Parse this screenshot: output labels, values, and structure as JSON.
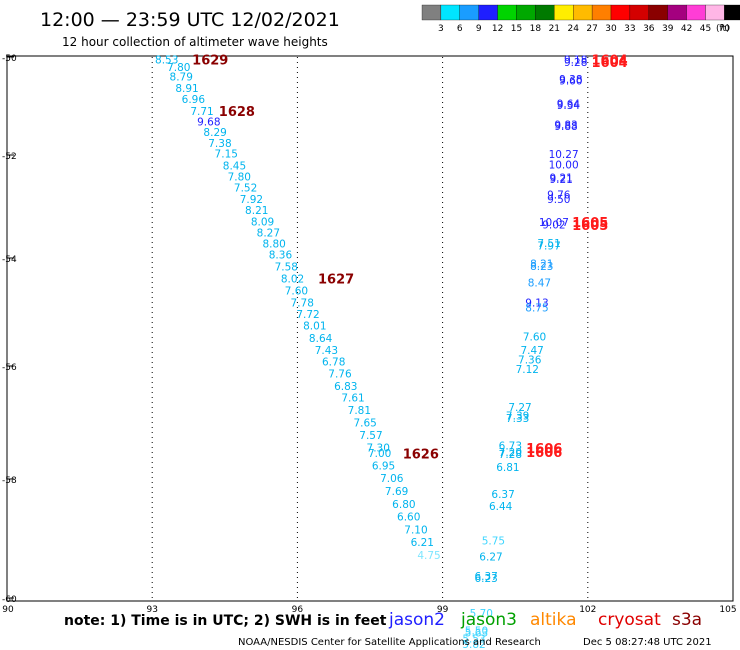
{
  "header": {
    "title": "12:00 — 23:59 UTC 12/02/2021",
    "subtitle": "12 hour collection of altimeter wave heights"
  },
  "color_scale": {
    "labels": [
      "3",
      "6",
      "9",
      "12",
      "15",
      "18",
      "21",
      "24",
      "27",
      "30",
      "33",
      "36",
      "39",
      "42",
      "45",
      "70"
    ],
    "unit": "(ft)",
    "colors": [
      "#808080",
      "#00e5ff",
      "#1a9dff",
      "#1f1fff",
      "#00d400",
      "#00a800",
      "#007a00",
      "#ffee00",
      "#ffbb00",
      "#ff7f00",
      "#ff0000",
      "#d40000",
      "#8a0000",
      "#a4007f",
      "#ff3dd6",
      "#ffb6e6",
      "#000000"
    ]
  },
  "map": {
    "lon_ticks": [
      "90",
      "93",
      "96",
      "99",
      "102",
      "105"
    ],
    "lat_ticks": [
      "-50",
      "-52",
      "-54",
      "-56",
      "-58",
      "-60"
    ],
    "gridlines": [
      "93",
      "96",
      "99",
      "102"
    ],
    "lon_range": [
      90,
      105
    ],
    "lat_range": [
      -50,
      -60
    ]
  },
  "satellites": {
    "jason2": {
      "label": "jason2",
      "color": "#1f1fff"
    },
    "jason3": {
      "label": "jason3",
      "color": "#00a000"
    },
    "altika": {
      "label": "altika",
      "color": "#ff8800"
    },
    "cryosat": {
      "label": "cryosat",
      "color": "#e00000"
    },
    "s3a": {
      "label": "s3a",
      "color": "#8a0000"
    }
  },
  "footer": {
    "note": "note: 1) Time is in UTC; 2) SWH is in feet",
    "legend": [
      "jason2",
      "jason3",
      "altika",
      "cryosat",
      "s3a"
    ],
    "credit": "NOAA/NESDIS Center for Satellite Applications and Research",
    "timestamp": "Dec  5 08:27:48 UTC 2021"
  },
  "tracks": [
    {
      "name": "s3a-track",
      "satellite": "s3a",
      "points": [
        {
          "lon": 93.3,
          "lat": -50.05,
          "v": "8.53",
          "c": "#00b4ee"
        },
        {
          "lon": 93.55,
          "lat": -50.2,
          "v": "7.80",
          "c": "#00b4ee"
        },
        {
          "lon": 93.6,
          "lat": -50.4,
          "v": "8.79",
          "c": "#00b4ee"
        },
        {
          "lon": 93.72,
          "lat": -50.63,
          "v": "8.91",
          "c": "#00b4ee"
        },
        {
          "lon": 93.85,
          "lat": -50.86,
          "v": "6.96",
          "c": "#00b4ee"
        },
        {
          "lon": 94.03,
          "lat": -51.1,
          "v": "7.71",
          "c": "#00b4ee"
        },
        {
          "lon": 94.17,
          "lat": -51.32,
          "v": "9.68",
          "c": "#1f1fff"
        },
        {
          "lon": 94.3,
          "lat": -51.53,
          "v": "8.29",
          "c": "#00b4ee"
        },
        {
          "lon": 94.4,
          "lat": -51.75,
          "v": "7.38",
          "c": "#00b4ee"
        },
        {
          "lon": 94.53,
          "lat": -51.97,
          "v": "7.15",
          "c": "#00b4ee"
        },
        {
          "lon": 94.7,
          "lat": -52.2,
          "v": "8.45",
          "c": "#00b4ee"
        },
        {
          "lon": 94.8,
          "lat": -52.42,
          "v": "7.80",
          "c": "#00b4ee"
        },
        {
          "lon": 94.93,
          "lat": -52.63,
          "v": "7.52",
          "c": "#00b4ee"
        },
        {
          "lon": 95.05,
          "lat": -52.85,
          "v": "7.92",
          "c": "#00b4ee"
        },
        {
          "lon": 95.16,
          "lat": -53.07,
          "v": "8.21",
          "c": "#00b4ee"
        },
        {
          "lon": 95.28,
          "lat": -53.29,
          "v": "8.09",
          "c": "#00b4ee"
        },
        {
          "lon": 95.4,
          "lat": -53.5,
          "v": "8.27",
          "c": "#00b4ee"
        },
        {
          "lon": 95.52,
          "lat": -53.72,
          "v": "8.80",
          "c": "#00b4ee"
        },
        {
          "lon": 95.65,
          "lat": -53.93,
          "v": "8.36",
          "c": "#00b4ee"
        },
        {
          "lon": 95.77,
          "lat": -54.16,
          "v": "7.58",
          "c": "#00b4ee"
        },
        {
          "lon": 95.9,
          "lat": -54.38,
          "v": "8.02",
          "c": "#00b4ee"
        },
        {
          "lon": 95.98,
          "lat": -54.6,
          "v": "7.60",
          "c": "#00b4ee"
        },
        {
          "lon": 96.1,
          "lat": -54.82,
          "v": "7.78",
          "c": "#00b4ee"
        },
        {
          "lon": 96.22,
          "lat": -55.04,
          "v": "7.72",
          "c": "#00b4ee"
        },
        {
          "lon": 96.36,
          "lat": -55.25,
          "v": "8.01",
          "c": "#00b4ee"
        },
        {
          "lon": 96.48,
          "lat": -55.48,
          "v": "8.64",
          "c": "#00b4ee"
        },
        {
          "lon": 96.6,
          "lat": -55.7,
          "v": "7.43",
          "c": "#00b4ee"
        },
        {
          "lon": 96.75,
          "lat": -55.92,
          "v": "6.78",
          "c": "#00b4ee"
        },
        {
          "lon": 96.88,
          "lat": -56.13,
          "v": "7.76",
          "c": "#00b4ee"
        },
        {
          "lon": 97.0,
          "lat": -56.35,
          "v": "6.83",
          "c": "#00b4ee"
        },
        {
          "lon": 97.15,
          "lat": -56.56,
          "v": "7.61",
          "c": "#00b4ee"
        },
        {
          "lon": 97.28,
          "lat": -56.78,
          "v": "7.81",
          "c": "#00b4ee"
        },
        {
          "lon": 97.4,
          "lat": -57.0,
          "v": "7.65",
          "c": "#00b4ee"
        },
        {
          "lon": 97.52,
          "lat": -57.22,
          "v": "7.57",
          "c": "#00b4ee"
        },
        {
          "lon": 97.67,
          "lat": -57.44,
          "v": "7.30",
          "c": "#00b4ee"
        },
        {
          "lon": 97.7,
          "lat": -57.54,
          "v": "7.00",
          "c": "#00b4ee"
        },
        {
          "lon": 97.78,
          "lat": -57.76,
          "v": "6.95",
          "c": "#00b4ee"
        },
        {
          "lon": 97.95,
          "lat": -57.98,
          "v": "7.06",
          "c": "#00b4ee"
        },
        {
          "lon": 98.05,
          "lat": -58.2,
          "v": "7.69",
          "c": "#00b4ee"
        },
        {
          "lon": 98.2,
          "lat": -58.42,
          "v": "6.80",
          "c": "#00b4ee"
        },
        {
          "lon": 98.3,
          "lat": -58.63,
          "v": "6.60",
          "c": "#00b4ee"
        },
        {
          "lon": 98.45,
          "lat": -58.85,
          "v": "7.10",
          "c": "#00b4ee"
        },
        {
          "lon": 98.58,
          "lat": -59.06,
          "v": "6.21",
          "c": "#00b4ee"
        },
        {
          "lon": 98.72,
          "lat": -59.28,
          "v": "4.75",
          "c": "#7fe6ff"
        }
      ],
      "labels": [
        {
          "lon": 94.2,
          "lat": -50.05,
          "t": "1629"
        },
        {
          "lon": 94.75,
          "lat": -51.1,
          "t": "1628"
        },
        {
          "lon": 96.8,
          "lat": -54.38,
          "t": "1627"
        },
        {
          "lon": 98.55,
          "lat": -57.55,
          "t": "1626"
        }
      ]
    },
    {
      "name": "jason2-track",
      "satellite": "jason2",
      "points": [
        {
          "lon": 101.75,
          "lat": -50.05,
          "v": "9.18",
          "c": "#1f1fff"
        },
        {
          "lon": 101.75,
          "lat": -50.1,
          "v": "9.28",
          "c": "#1f1fff"
        },
        {
          "lon": 101.65,
          "lat": -50.45,
          "v": "9.38",
          "c": "#1f1fff"
        },
        {
          "lon": 101.65,
          "lat": -50.48,
          "v": "9.60",
          "c": "#1f1fff"
        },
        {
          "lon": 101.6,
          "lat": -50.95,
          "v": "9.64",
          "c": "#1f1fff"
        },
        {
          "lon": 101.6,
          "lat": -50.98,
          "v": "9.34",
          "c": "#1f1fff"
        },
        {
          "lon": 101.55,
          "lat": -51.38,
          "v": "9.83",
          "c": "#1f1fff"
        },
        {
          "lon": 101.55,
          "lat": -51.41,
          "v": "9.88",
          "c": "#1f1fff"
        },
        {
          "lon": 101.5,
          "lat": -51.98,
          "v": "10.27",
          "c": "#1f1fff"
        },
        {
          "lon": 101.5,
          "lat": -52.18,
          "v": "10.00",
          "c": "#1f1fff"
        },
        {
          "lon": 101.45,
          "lat": -52.44,
          "v": "9.21",
          "c": "#1f1fff"
        },
        {
          "lon": 101.45,
          "lat": -52.47,
          "v": "9.21",
          "c": "#1f1fff"
        },
        {
          "lon": 101.4,
          "lat": -52.77,
          "v": "9.76",
          "c": "#1f1fff"
        },
        {
          "lon": 101.4,
          "lat": -52.85,
          "v": "9.50",
          "c": "#1f1fff"
        },
        {
          "lon": 101.3,
          "lat": -53.3,
          "v": "10.07",
          "c": "#1f1fff"
        },
        {
          "lon": 101.3,
          "lat": -53.35,
          "v": "9.02",
          "c": "#1f1fff"
        },
        {
          "lon": 101.2,
          "lat": -53.71,
          "v": "7.51",
          "c": "#00b4ee"
        },
        {
          "lon": 101.2,
          "lat": -53.76,
          "v": "7.97",
          "c": "#00b4ee"
        },
        {
          "lon": 101.05,
          "lat": -54.1,
          "v": "8.21",
          "c": "#1a9dff"
        },
        {
          "lon": 101.05,
          "lat": -54.15,
          "v": "8.23",
          "c": "#1a9dff"
        },
        {
          "lon": 101.0,
          "lat": -54.45,
          "v": "8.47",
          "c": "#1a9dff"
        },
        {
          "lon": 100.95,
          "lat": -54.82,
          "v": "9.13",
          "c": "#1f1fff"
        },
        {
          "lon": 100.95,
          "lat": -54.92,
          "v": "8.75",
          "c": "#1a9dff"
        },
        {
          "lon": 100.9,
          "lat": -55.45,
          "v": "7.60",
          "c": "#00b4ee"
        },
        {
          "lon": 100.85,
          "lat": -55.7,
          "v": "7.47",
          "c": "#00b4ee"
        },
        {
          "lon": 100.8,
          "lat": -55.88,
          "v": "7.36",
          "c": "#00b4ee"
        },
        {
          "lon": 100.75,
          "lat": -56.05,
          "v": "7.12",
          "c": "#00b4ee"
        },
        {
          "lon": 100.6,
          "lat": -56.73,
          "v": "7.27",
          "c": "#00b4ee"
        },
        {
          "lon": 100.55,
          "lat": -56.88,
          "v": "7.39",
          "c": "#00b4ee"
        },
        {
          "lon": 100.55,
          "lat": -56.92,
          "v": "7.33",
          "c": "#00b4ee"
        },
        {
          "lon": 100.4,
          "lat": -57.41,
          "v": "6.73",
          "c": "#00b4ee"
        },
        {
          "lon": 100.4,
          "lat": -57.52,
          "v": "7.20",
          "c": "#00b4ee"
        },
        {
          "lon": 100.4,
          "lat": -57.56,
          "v": "7.28",
          "c": "#00b4ee"
        },
        {
          "lon": 100.35,
          "lat": -57.79,
          "v": "6.81",
          "c": "#00b4ee"
        },
        {
          "lon": 100.25,
          "lat": -58.25,
          "v": "6.37",
          "c": "#00b4ee"
        },
        {
          "lon": 100.2,
          "lat": -58.45,
          "v": "6.44",
          "c": "#00b4ee"
        },
        {
          "lon": 100.05,
          "lat": -59.03,
          "v": "5.75",
          "c": "#3fd6ff"
        },
        {
          "lon": 100.0,
          "lat": -59.3,
          "v": "6.27",
          "c": "#00b4ee"
        },
        {
          "lon": 99.9,
          "lat": -59.63,
          "v": "6.37",
          "c": "#00b4ee"
        },
        {
          "lon": 99.9,
          "lat": -59.66,
          "v": "6.23",
          "c": "#00b4ee"
        },
        {
          "lon": 99.8,
          "lat": -60.25,
          "v": "5.70",
          "c": "#3fd6ff"
        },
        {
          "lon": 99.7,
          "lat": -60.55,
          "v": "5.50",
          "c": "#3fd6ff"
        },
        {
          "lon": 99.7,
          "lat": -60.58,
          "v": "5.63",
          "c": "#3fd6ff"
        },
        {
          "lon": 99.65,
          "lat": -60.68,
          "v": "5.53",
          "c": "#3fd6ff"
        },
        {
          "lon": 99.65,
          "lat": -60.77,
          "v": "5.82",
          "c": "#3fd6ff"
        }
      ],
      "labels": [
        {
          "lon": 102.45,
          "lat": -50.05,
          "t": "1604"
        },
        {
          "lon": 102.45,
          "lat": -50.1,
          "t": "1604"
        },
        {
          "lon": 102.05,
          "lat": -53.3,
          "t": "1605"
        },
        {
          "lon": 102.05,
          "lat": -53.36,
          "t": "1605"
        },
        {
          "lon": 101.1,
          "lat": -57.45,
          "t": "1606"
        },
        {
          "lon": 101.1,
          "lat": -57.52,
          "t": "1606"
        }
      ]
    }
  ]
}
